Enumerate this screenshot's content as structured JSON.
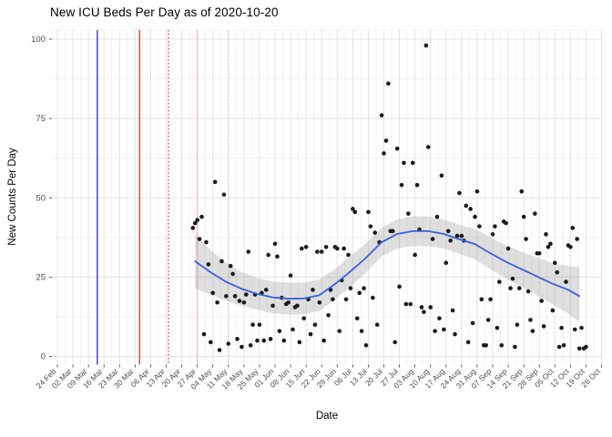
{
  "title": "New ICU Beds Per Day as of 2020-10-20",
  "chart_data": {
    "type": "scatter",
    "title": "New ICU Beds Per Day as of 2020-10-20",
    "xlabel": "Date",
    "ylabel": "New Counts Per Day",
    "ylim": [
      0,
      100
    ],
    "grid": true,
    "legend": false,
    "y_ticks": [
      0,
      25,
      50,
      75,
      100
    ],
    "y_minor_ticks": [
      12.5,
      37.5,
      62.5,
      87.5,
      103
    ],
    "x_tick_labels": [
      "24 Feb",
      "02 Mar",
      "09 Mar",
      "16 Mar",
      "23 Mar",
      "30 Mar",
      "06 Apr",
      "13 Apr",
      "20 Apr",
      "27 Apr",
      "04 May",
      "11 May",
      "18 May",
      "25 May",
      "01 Jun",
      "08 Jun",
      "15 Jun",
      "22 Jun",
      "29 Jun",
      "06 Jul",
      "13 Jul",
      "20 Jul",
      "27 Jul",
      "03 Aug",
      "10 Aug",
      "17 Aug",
      "24 Aug",
      "31 Aug",
      "07 Sep",
      "14 Sep",
      "21 Sep",
      "28 Sep",
      "05 Oct",
      "12 Oct",
      "19 Oct",
      "26 Oct"
    ],
    "colors": {
      "point": "#1b1b1b",
      "smooth_line": "#3a5fdf",
      "band_color": "#9a9a9a",
      "band_opacity": 0.32,
      "grid_major": "#e3e3e3",
      "grid_minor": "#f0f0f0",
      "tick": "#333333",
      "tick_label": "#4d4d4d"
    },
    "vlines": [
      {
        "date": "13 Mar",
        "color": "#2222bb",
        "style": "solid"
      },
      {
        "date": "01 Apr",
        "color": "#dd2222",
        "style": "solid"
      },
      {
        "date": "14 Apr",
        "color": "#dd2222",
        "style": "dotted"
      },
      {
        "date": "27 Apr",
        "color": "#f5b3bc",
        "style": "solid"
      },
      {
        "date": "11 May",
        "color": "#f5b3bc",
        "style": "dotted"
      }
    ],
    "smooth": [
      {
        "d": "26 Apr",
        "v": 30.0,
        "lo": 21.5,
        "hi": 38.5
      },
      {
        "d": "03 May",
        "v": 26.5,
        "lo": 19.5,
        "hi": 33.5
      },
      {
        "d": "10 May",
        "v": 23.5,
        "lo": 17.5,
        "hi": 29.5
      },
      {
        "d": "17 May",
        "v": 21.3,
        "lo": 16.0,
        "hi": 26.6
      },
      {
        "d": "24 May",
        "v": 19.7,
        "lo": 14.7,
        "hi": 24.7
      },
      {
        "d": "31 May",
        "v": 18.6,
        "lo": 13.6,
        "hi": 23.6
      },
      {
        "d": "07 Jun",
        "v": 18.2,
        "lo": 13.2,
        "hi": 23.2
      },
      {
        "d": "14 Jun",
        "v": 18.3,
        "lo": 13.3,
        "hi": 23.3
      },
      {
        "d": "21 Jun",
        "v": 19.3,
        "lo": 14.3,
        "hi": 24.3
      },
      {
        "d": "28 Jun",
        "v": 22.8,
        "lo": 18.0,
        "hi": 27.6
      },
      {
        "d": "05 Jul",
        "v": 26.8,
        "lo": 22.0,
        "hi": 31.6
      },
      {
        "d": "12 Jul",
        "v": 31.1,
        "lo": 26.5,
        "hi": 35.7
      },
      {
        "d": "19 Jul",
        "v": 36.0,
        "lo": 31.5,
        "hi": 40.5
      },
      {
        "d": "26 Jul",
        "v": 38.6,
        "lo": 34.0,
        "hi": 43.2
      },
      {
        "d": "02 Aug",
        "v": 39.5,
        "lo": 34.8,
        "hi": 44.2
      },
      {
        "d": "09 Aug",
        "v": 39.5,
        "lo": 34.8,
        "hi": 44.2
      },
      {
        "d": "16 Aug",
        "v": 38.6,
        "lo": 34.0,
        "hi": 43.2
      },
      {
        "d": "23 Aug",
        "v": 36.9,
        "lo": 32.3,
        "hi": 41.5
      },
      {
        "d": "30 Aug",
        "v": 35.4,
        "lo": 30.6,
        "hi": 40.2
      },
      {
        "d": "06 Sep",
        "v": 32.5,
        "lo": 27.5,
        "hi": 37.5
      },
      {
        "d": "13 Sep",
        "v": 29.8,
        "lo": 24.6,
        "hi": 35.0
      },
      {
        "d": "20 Sep",
        "v": 27.5,
        "lo": 22.0,
        "hi": 33.0
      },
      {
        "d": "27 Sep",
        "v": 25.2,
        "lo": 19.2,
        "hi": 31.2
      },
      {
        "d": "04 Oct",
        "v": 22.9,
        "lo": 16.4,
        "hi": 29.4
      },
      {
        "d": "11 Oct",
        "v": 21.0,
        "lo": 13.5,
        "hi": 28.5
      },
      {
        "d": "16 Oct",
        "v": 19.0,
        "lo": 11.0,
        "hi": 28.0
      }
    ],
    "points": [
      {
        "d": "25 Apr",
        "v": 40.5
      },
      {
        "d": "26 Apr",
        "v": 42
      },
      {
        "d": "27 Apr",
        "v": 43
      },
      {
        "d": "28 Apr",
        "v": 37
      },
      {
        "d": "29 Apr",
        "v": 44
      },
      {
        "d": "30 Apr",
        "v": 7
      },
      {
        "d": "01 May",
        "v": 36
      },
      {
        "d": "02 May",
        "v": 29
      },
      {
        "d": "03 May",
        "v": 4.5
      },
      {
        "d": "04 May",
        "v": 20
      },
      {
        "d": "05 May",
        "v": 55
      },
      {
        "d": "06 May",
        "v": 17
      },
      {
        "d": "07 May",
        "v": 2
      },
      {
        "d": "08 May",
        "v": 30
      },
      {
        "d": "09 May",
        "v": 51
      },
      {
        "d": "10 May",
        "v": 19
      },
      {
        "d": "11 May",
        "v": 4
      },
      {
        "d": "12 May",
        "v": 28.5
      },
      {
        "d": "13 May",
        "v": 26
      },
      {
        "d": "14 May",
        "v": 19
      },
      {
        "d": "15 May",
        "v": 5.5
      },
      {
        "d": "16 May",
        "v": 17.5
      },
      {
        "d": "17 May",
        "v": 3
      },
      {
        "d": "18 May",
        "v": 17
      },
      {
        "d": "19 May",
        "v": 19.5
      },
      {
        "d": "20 May",
        "v": 33
      },
      {
        "d": "21 May",
        "v": 3.5
      },
      {
        "d": "22 May",
        "v": 10
      },
      {
        "d": "23 May",
        "v": 19.5
      },
      {
        "d": "24 May",
        "v": 5
      },
      {
        "d": "25 May",
        "v": 10
      },
      {
        "d": "26 May",
        "v": 20
      },
      {
        "d": "27 May",
        "v": 5
      },
      {
        "d": "28 May",
        "v": 21
      },
      {
        "d": "29 May",
        "v": 32
      },
      {
        "d": "30 May",
        "v": 5.5
      },
      {
        "d": "31 May",
        "v": 16
      },
      {
        "d": "01 Jun",
        "v": 35.5
      },
      {
        "d": "02 Jun",
        "v": 31.5
      },
      {
        "d": "03 Jun",
        "v": 8
      },
      {
        "d": "04 Jun",
        "v": 18.5
      },
      {
        "d": "05 Jun",
        "v": 5
      },
      {
        "d": "06 Jun",
        "v": 16.5
      },
      {
        "d": "07 Jun",
        "v": 17
      },
      {
        "d": "08 Jun",
        "v": 25.5
      },
      {
        "d": "09 Jun",
        "v": 8.5
      },
      {
        "d": "10 Jun",
        "v": 15.5
      },
      {
        "d": "11 Jun",
        "v": 16
      },
      {
        "d": "12 Jun",
        "v": 4.5
      },
      {
        "d": "13 Jun",
        "v": 34
      },
      {
        "d": "14 Jun",
        "v": 12
      },
      {
        "d": "15 Jun",
        "v": 34.5
      },
      {
        "d": "16 Jun",
        "v": 18
      },
      {
        "d": "17 Jun",
        "v": 7
      },
      {
        "d": "18 Jun",
        "v": 21
      },
      {
        "d": "19 Jun",
        "v": 10
      },
      {
        "d": "20 Jun",
        "v": 33
      },
      {
        "d": "21 Jun",
        "v": 17
      },
      {
        "d": "22 Jun",
        "v": 33
      },
      {
        "d": "23 Jun",
        "v": 5
      },
      {
        "d": "24 Jun",
        "v": 34.5
      },
      {
        "d": "25 Jun",
        "v": 13
      },
      {
        "d": "26 Jun",
        "v": 21
      },
      {
        "d": "27 Jun",
        "v": 18
      },
      {
        "d": "28 Jun",
        "v": 34.5
      },
      {
        "d": "29 Jun",
        "v": 34
      },
      {
        "d": "30 Jun",
        "v": 8
      },
      {
        "d": "01 Jul",
        "v": 24
      },
      {
        "d": "02 Jul",
        "v": 34
      },
      {
        "d": "03 Jul",
        "v": 18
      },
      {
        "d": "04 Jul",
        "v": 32
      },
      {
        "d": "05 Jul",
        "v": 21.5
      },
      {
        "d": "06 Jul",
        "v": 46.5
      },
      {
        "d": "07 Jul",
        "v": 45.5
      },
      {
        "d": "08 Jul",
        "v": 12
      },
      {
        "d": "09 Jul",
        "v": 20
      },
      {
        "d": "10 Jul",
        "v": 8
      },
      {
        "d": "11 Jul",
        "v": 21.5
      },
      {
        "d": "12 Jul",
        "v": 3.5
      },
      {
        "d": "13 Jul",
        "v": 45.5
      },
      {
        "d": "14 Jul",
        "v": 41
      },
      {
        "d": "15 Jul",
        "v": 18.5
      },
      {
        "d": "16 Jul",
        "v": 39
      },
      {
        "d": "17 Jul",
        "v": 10
      },
      {
        "d": "18 Jul",
        "v": 36
      },
      {
        "d": "19 Jul",
        "v": 76
      },
      {
        "d": "20 Jul",
        "v": 64
      },
      {
        "d": "21 Jul",
        "v": 68
      },
      {
        "d": "22 Jul",
        "v": 86
      },
      {
        "d": "23 Jul",
        "v": 39.5
      },
      {
        "d": "24 Jul",
        "v": 39.5
      },
      {
        "d": "25 Jul",
        "v": 4.5
      },
      {
        "d": "26 Jul",
        "v": 65.5
      },
      {
        "d": "27 Jul",
        "v": 22
      },
      {
        "d": "28 Jul",
        "v": 54
      },
      {
        "d": "29 Jul",
        "v": 61
      },
      {
        "d": "30 Jul",
        "v": 16.5
      },
      {
        "d": "31 Jul",
        "v": 45
      },
      {
        "d": "01 Aug",
        "v": 16.5
      },
      {
        "d": "02 Aug",
        "v": 61
      },
      {
        "d": "03 Aug",
        "v": 32
      },
      {
        "d": "04 Aug",
        "v": 54
      },
      {
        "d": "05 Aug",
        "v": 40
      },
      {
        "d": "06 Aug",
        "v": 15.5
      },
      {
        "d": "07 Aug",
        "v": 14
      },
      {
        "d": "08 Aug",
        "v": 98
      },
      {
        "d": "09 Aug",
        "v": 66
      },
      {
        "d": "10 Aug",
        "v": 15.5
      },
      {
        "d": "11 Aug",
        "v": 37
      },
      {
        "d": "12 Aug",
        "v": 8
      },
      {
        "d": "13 Aug",
        "v": 44
      },
      {
        "d": "14 Aug",
        "v": 12
      },
      {
        "d": "15 Aug",
        "v": 57
      },
      {
        "d": "16 Aug",
        "v": 8.5
      },
      {
        "d": "17 Aug",
        "v": 29.5
      },
      {
        "d": "18 Aug",
        "v": 39.5
      },
      {
        "d": "19 Aug",
        "v": 36.5
      },
      {
        "d": "20 Aug",
        "v": 14.5
      },
      {
        "d": "21 Aug",
        "v": 7
      },
      {
        "d": "22 Aug",
        "v": 38
      },
      {
        "d": "23 Aug",
        "v": 51.5
      },
      {
        "d": "24 Aug",
        "v": 38
      },
      {
        "d": "25 Aug",
        "v": 36.5
      },
      {
        "d": "26 Aug",
        "v": 47.5
      },
      {
        "d": "27 Aug",
        "v": 4.5
      },
      {
        "d": "28 Aug",
        "v": 46.5
      },
      {
        "d": "29 Aug",
        "v": 10.5
      },
      {
        "d": "30 Aug",
        "v": 44
      },
      {
        "d": "31 Aug",
        "v": 52
      },
      {
        "d": "01 Sep",
        "v": 41
      },
      {
        "d": "02 Sep",
        "v": 18
      },
      {
        "d": "03 Sep",
        "v": 3.5
      },
      {
        "d": "04 Sep",
        "v": 3.5
      },
      {
        "d": "05 Sep",
        "v": 11.5
      },
      {
        "d": "06 Sep",
        "v": 18
      },
      {
        "d": "07 Sep",
        "v": 38.5
      },
      {
        "d": "08 Sep",
        "v": 41
      },
      {
        "d": "09 Sep",
        "v": 9
      },
      {
        "d": "10 Sep",
        "v": 23.5
      },
      {
        "d": "11 Sep",
        "v": 3.5
      },
      {
        "d": "12 Sep",
        "v": 42.5
      },
      {
        "d": "13 Sep",
        "v": 42
      },
      {
        "d": "14 Sep",
        "v": 34
      },
      {
        "d": "15 Sep",
        "v": 21.5
      },
      {
        "d": "16 Sep",
        "v": 24.5
      },
      {
        "d": "17 Sep",
        "v": 3
      },
      {
        "d": "18 Sep",
        "v": 10
      },
      {
        "d": "19 Sep",
        "v": 21.5
      },
      {
        "d": "20 Sep",
        "v": 52
      },
      {
        "d": "21 Sep",
        "v": 44
      },
      {
        "d": "22 Sep",
        "v": 37
      },
      {
        "d": "23 Sep",
        "v": 20.5
      },
      {
        "d": "24 Sep",
        "v": 11.5
      },
      {
        "d": "25 Sep",
        "v": 8
      },
      {
        "d": "26 Sep",
        "v": 45
      },
      {
        "d": "27 Sep",
        "v": 32.5
      },
      {
        "d": "28 Sep",
        "v": 32.5
      },
      {
        "d": "29 Sep",
        "v": 17.5
      },
      {
        "d": "30 Sep",
        "v": 9.5
      },
      {
        "d": "01 Oct",
        "v": 38.5
      },
      {
        "d": "02 Oct",
        "v": 34.5
      },
      {
        "d": "03 Oct",
        "v": 35.5
      },
      {
        "d": "04 Oct",
        "v": 14.5
      },
      {
        "d": "05 Oct",
        "v": 29.5
      },
      {
        "d": "06 Oct",
        "v": 26.5
      },
      {
        "d": "07 Oct",
        "v": 3
      },
      {
        "d": "08 Oct",
        "v": 9
      },
      {
        "d": "09 Oct",
        "v": 3.5
      },
      {
        "d": "10 Oct",
        "v": 23.5
      },
      {
        "d": "11 Oct",
        "v": 35
      },
      {
        "d": "12 Oct",
        "v": 34.5
      },
      {
        "d": "13 Oct",
        "v": 40.5
      },
      {
        "d": "14 Oct",
        "v": 8.5
      },
      {
        "d": "15 Oct",
        "v": 37
      },
      {
        "d": "16 Oct",
        "v": 2.5
      },
      {
        "d": "17 Oct",
        "v": 9
      },
      {
        "d": "18 Oct",
        "v": 2.5
      },
      {
        "d": "19 Oct",
        "v": 3
      }
    ]
  }
}
